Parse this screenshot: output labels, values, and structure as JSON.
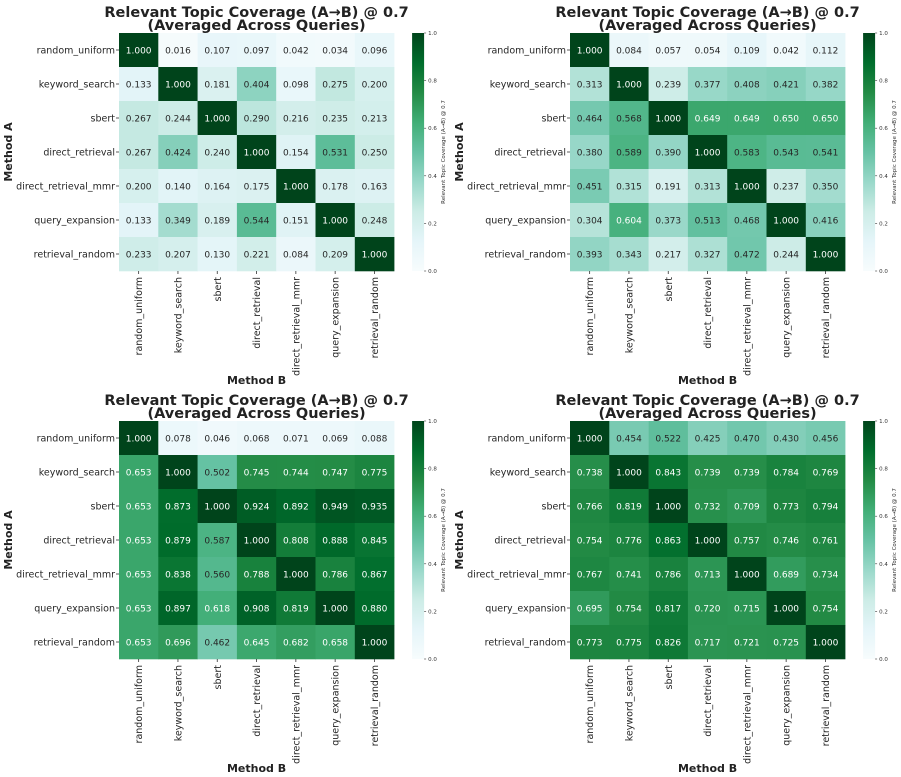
{
  "methods": [
    "random_uniform",
    "keyword_search",
    "sbert",
    "direct_retrieval",
    "direct_retrieval_mmr",
    "query_expansion",
    "retrieval_random"
  ],
  "colorbar_ticks": [
    "0.0",
    "0.2",
    "0.4",
    "0.6",
    "0.8",
    "1.0"
  ],
  "colormap": [
    "#f7fcfd",
    "#e5f5f9",
    "#ccece6",
    "#99d8c9",
    "#66c2a4",
    "#41ae76",
    "#238b45",
    "#006d2c",
    "#00441b"
  ],
  "chart_data": [
    {
      "type": "heatmap",
      "title": "Relevant Topic Coverage (A→B) @ 0.7",
      "subtitle": "(Averaged Across Queries)",
      "xlabel": "Method B",
      "ylabel": "Method A",
      "colorbar_label": "Relevant Topic Coverage (A→B) @ 0.7",
      "vmin": 0,
      "vmax": 1,
      "values": [
        [
          1.0,
          0.016,
          0.107,
          0.097,
          0.042,
          0.034,
          0.096
        ],
        [
          0.133,
          1.0,
          0.181,
          0.404,
          0.098,
          0.275,
          0.2
        ],
        [
          0.267,
          0.244,
          1.0,
          0.29,
          0.216,
          0.235,
          0.213
        ],
        [
          0.267,
          0.424,
          0.24,
          1.0,
          0.154,
          0.531,
          0.25
        ],
        [
          0.2,
          0.14,
          0.164,
          0.175,
          1.0,
          0.178,
          0.163
        ],
        [
          0.133,
          0.349,
          0.189,
          0.544,
          0.151,
          1.0,
          0.248
        ],
        [
          0.233,
          0.207,
          0.13,
          0.221,
          0.084,
          0.209,
          1.0
        ]
      ]
    },
    {
      "type": "heatmap",
      "title": "Relevant Topic Coverage (A→B) @ 0.7",
      "subtitle": "(Averaged Across Queries)",
      "xlabel": "Method B",
      "ylabel": "Method A",
      "colorbar_label": "Relevant Topic Coverage (A→B) @ 0.7",
      "vmin": 0,
      "vmax": 1,
      "values": [
        [
          1.0,
          0.084,
          0.057,
          0.054,
          0.109,
          0.042,
          0.112
        ],
        [
          0.313,
          1.0,
          0.239,
          0.377,
          0.408,
          0.421,
          0.382
        ],
        [
          0.464,
          0.568,
          1.0,
          0.649,
          0.649,
          0.65,
          0.65
        ],
        [
          0.38,
          0.589,
          0.39,
          1.0,
          0.583,
          0.543,
          0.541
        ],
        [
          0.451,
          0.315,
          0.191,
          0.313,
          1.0,
          0.237,
          0.35
        ],
        [
          0.304,
          0.604,
          0.373,
          0.513,
          0.468,
          1.0,
          0.416
        ],
        [
          0.393,
          0.343,
          0.217,
          0.327,
          0.472,
          0.244,
          1.0
        ]
      ]
    },
    {
      "type": "heatmap",
      "title": "Relevant Topic Coverage (A→B) @ 0.7",
      "subtitle": "(Averaged Across Queries)",
      "xlabel": "Method B",
      "ylabel": "Method A",
      "colorbar_label": "Relevant Topic Coverage (A→B) @ 0.7",
      "vmin": 0,
      "vmax": 1,
      "values": [
        [
          1.0,
          0.078,
          0.046,
          0.068,
          0.071,
          0.069,
          0.088
        ],
        [
          0.653,
          1.0,
          0.502,
          0.745,
          0.744,
          0.747,
          0.775
        ],
        [
          0.653,
          0.873,
          1.0,
          0.924,
          0.892,
          0.949,
          0.935
        ],
        [
          0.653,
          0.879,
          0.587,
          1.0,
          0.808,
          0.888,
          0.845
        ],
        [
          0.653,
          0.838,
          0.56,
          0.788,
          1.0,
          0.786,
          0.867
        ],
        [
          0.653,
          0.897,
          0.618,
          0.908,
          0.819,
          1.0,
          0.88
        ],
        [
          0.653,
          0.696,
          0.462,
          0.645,
          0.682,
          0.658,
          1.0
        ]
      ]
    },
    {
      "type": "heatmap",
      "title": "Relevant Topic Coverage (A→B) @ 0.7",
      "subtitle": "(Averaged Across Queries)",
      "xlabel": "Method B",
      "ylabel": "Method A",
      "colorbar_label": "Relevant Topic Coverage (A→B) @ 0.7",
      "vmin": 0,
      "vmax": 1,
      "values": [
        [
          1.0,
          0.454,
          0.522,
          0.425,
          0.47,
          0.43,
          0.456
        ],
        [
          0.738,
          1.0,
          0.843,
          0.739,
          0.739,
          0.784,
          0.769
        ],
        [
          0.766,
          0.819,
          1.0,
          0.732,
          0.709,
          0.773,
          0.794
        ],
        [
          0.754,
          0.776,
          0.863,
          1.0,
          0.757,
          0.746,
          0.761
        ],
        [
          0.767,
          0.741,
          0.786,
          0.713,
          1.0,
          0.689,
          0.734
        ],
        [
          0.695,
          0.754,
          0.817,
          0.72,
          0.715,
          1.0,
          0.754
        ],
        [
          0.773,
          0.775,
          0.826,
          0.717,
          0.721,
          0.725,
          1.0
        ]
      ]
    }
  ]
}
